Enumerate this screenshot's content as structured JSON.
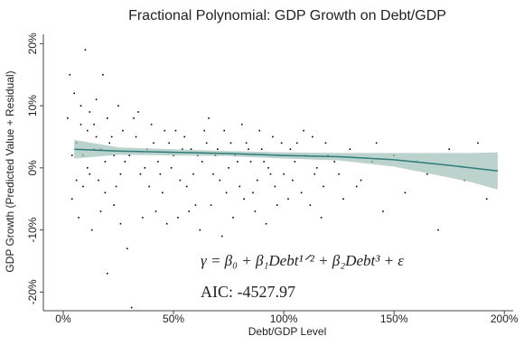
{
  "chart_data": {
    "type": "scatter",
    "title": "Fractional Polynomial: GDP Growth on Debt/GDP",
    "x_label": "Debt/GDP Level",
    "y_label": "GDP Growth (Predicted Value + Residual)",
    "annotations": [
      "γ = β₀ + β₁Debt¹ᐟ² + β₂Debt³ + ε",
      "AIC: -4527.97"
    ],
    "xlim": [
      -9,
      204
    ],
    "ylim": [
      -23,
      21.5
    ],
    "xticks": [
      {
        "value": 0,
        "label": "0%"
      },
      {
        "value": 50,
        "label": "50%"
      },
      {
        "value": 100,
        "label": "100%"
      },
      {
        "value": 150,
        "label": "150%"
      },
      {
        "value": 200,
        "label": "200%"
      }
    ],
    "yticks": [
      {
        "value": 20,
        "label": "20%"
      },
      {
        "value": 10,
        "label": "10%"
      },
      {
        "value": 0,
        "label": "0%"
      },
      {
        "value": -10,
        "label": "-10%"
      },
      {
        "value": -20,
        "label": "-20%"
      }
    ],
    "series": [
      {
        "type": "scatter",
        "color": "#000000",
        "x": [
          3,
          5,
          8,
          10,
          12,
          15,
          18,
          20,
          22,
          25,
          6,
          9,
          11,
          14,
          16,
          19,
          21,
          24,
          27,
          30,
          33,
          35,
          38,
          40,
          43,
          45,
          48,
          50,
          53,
          55,
          58,
          60,
          63,
          65,
          68,
          70,
          73,
          75,
          78,
          80,
          83,
          85,
          88,
          90,
          93,
          95,
          98,
          100,
          103,
          105,
          108,
          110,
          113,
          115,
          118,
          120,
          125,
          130,
          135,
          140,
          145,
          150,
          155,
          160,
          165,
          170,
          175,
          182,
          188,
          4,
          7,
          13,
          17,
          23,
          26,
          29,
          31,
          20,
          36,
          42,
          47,
          52,
          57,
          62,
          67,
          72,
          77,
          82,
          87,
          92,
          97,
          102,
          112,
          117,
          127,
          11,
          14,
          17,
          19,
          28,
          32,
          37,
          41,
          44,
          51,
          56,
          61,
          66,
          71,
          76,
          81,
          86,
          91,
          96,
          106,
          2,
          4,
          6,
          8,
          9,
          12,
          15,
          23,
          26,
          34,
          39,
          46,
          49,
          54,
          59,
          64,
          69,
          74,
          79,
          84,
          89,
          94,
          99,
          104,
          109,
          114,
          119,
          123,
          133,
          142,
          192
        ],
        "values": [
          15,
          12,
          7,
          19,
          9,
          11,
          15,
          8,
          5,
          10,
          4,
          2,
          6,
          3,
          -2,
          1,
          4,
          -3,
          6,
          2,
          5,
          -1,
          3,
          7,
          1,
          -4,
          4,
          2,
          -2,
          5,
          3,
          -6,
          1,
          4,
          -1,
          3,
          6,
          0,
          2,
          -3,
          4,
          1,
          -2,
          3,
          0,
          5,
          2,
          -1,
          3,
          1,
          -4,
          2,
          5,
          0,
          -3,
          2,
          -1,
          3,
          -2,
          1,
          -7,
          2,
          -4,
          1,
          -1,
          -10,
          3,
          -2,
          4,
          -5,
          -8,
          -10,
          -7,
          -6,
          -9,
          -13,
          -22.5,
          -17,
          -8,
          -7,
          -9,
          -8,
          -7,
          -10,
          -6,
          -11,
          -8,
          -5,
          -7,
          -9,
          -6,
          -5,
          -6,
          -8,
          -5,
          0,
          7,
          3,
          -4,
          1,
          8,
          0,
          4,
          -1,
          6,
          -3,
          2,
          8,
          -2,
          4,
          7,
          -4,
          1,
          -3,
          4,
          8,
          2,
          -2,
          10,
          -3,
          -1,
          5,
          2,
          -1,
          9,
          -3,
          6,
          0,
          3,
          -1,
          6,
          2,
          -4,
          1,
          3,
          6,
          -1,
          4,
          -2,
          6,
          -1,
          4,
          1,
          -3,
          4,
          -5
        ]
      },
      {
        "type": "line",
        "color": "#2e7d7a",
        "band_color": "#9fbfb8",
        "x": [
          5,
          25,
          50,
          75,
          100,
          125,
          150,
          170,
          185,
          197
        ],
        "values": [
          3,
          2.7,
          2.5,
          2.3,
          2,
          1.8,
          1.3,
          0.6,
          0,
          -0.5
        ],
        "lower": [
          1.5,
          2.1,
          2,
          1.9,
          1.5,
          1.2,
          0.2,
          -1.2,
          -2.3,
          -3.5
        ],
        "upper": [
          4.5,
          3.3,
          3,
          2.7,
          2.5,
          2.4,
          2.4,
          2.4,
          2.4,
          2.5
        ]
      }
    ]
  }
}
